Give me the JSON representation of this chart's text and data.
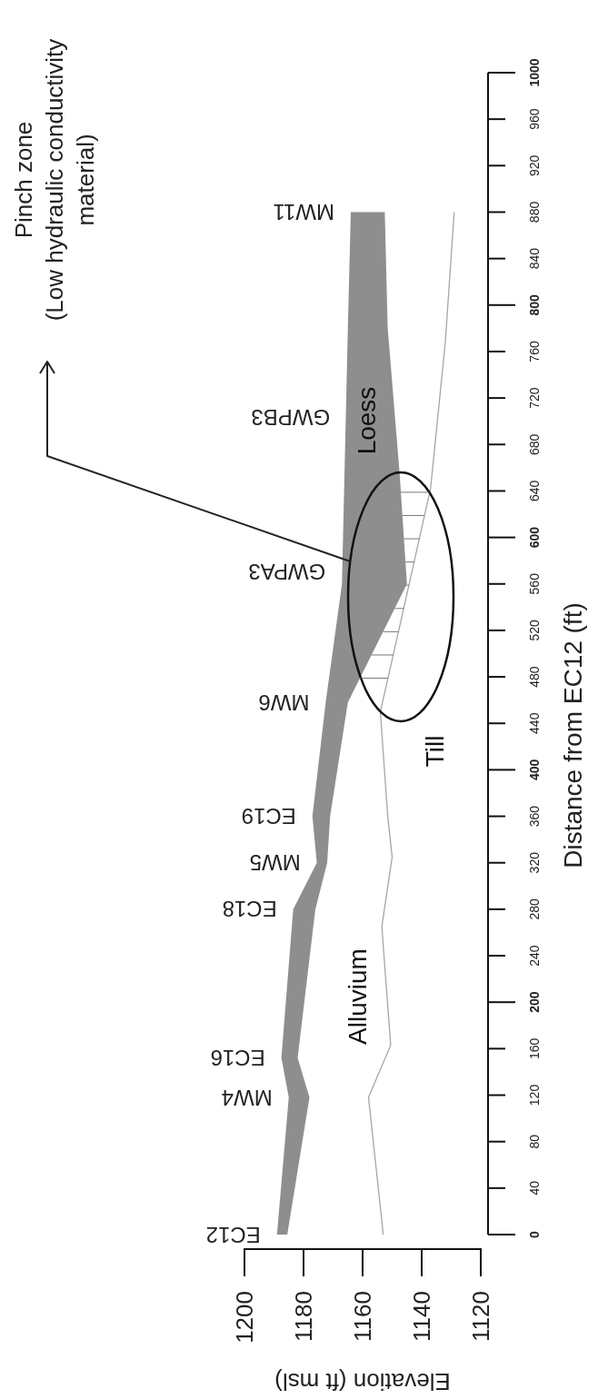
{
  "chart_data": {
    "type": "line",
    "xlabel": "Elevation (ft msl)",
    "ylabel": "Distance from EC12 (ft)",
    "xlim": [
      1200,
      1120
    ],
    "ylim": [
      0,
      1000
    ],
    "xticks": [
      1200,
      1180,
      1160,
      1140,
      1120
    ],
    "yticks": [
      0,
      40,
      80,
      120,
      160,
      200,
      240,
      280,
      320,
      360,
      400,
      440,
      480,
      520,
      560,
      600,
      640,
      680,
      720,
      760,
      800,
      840,
      880,
      920,
      960,
      1000
    ],
    "series": [
      {
        "type": "area",
        "color": "#8e8e8e",
        "x": [
          1189,
          1185,
          1187.5,
          1183.5,
          1175.5,
          1177,
          1172.5,
          1167,
          1165,
          1164,
          1152.5,
          1151.5,
          1147.5,
          1145,
          1165,
          1171,
          1172,
          1176,
          1182,
          1178,
          1185.5
        ],
        "values": [
          0,
          118,
          152,
          280,
          320,
          360,
          458,
          560,
          780,
          880,
          880,
          780,
          656,
          560,
          458,
          360,
          320,
          280,
          152,
          118,
          0
        ]
      },
      {
        "color": "#a6a6a6",
        "x": [
          1153,
          1158,
          1150.5,
          1153.5,
          1150,
          1151.5,
          1154,
          1147.5,
          1137,
          1132,
          1129
        ],
        "values": [
          0,
          118,
          163,
          265,
          325,
          360,
          450,
          523,
          642,
          768,
          880
        ]
      }
    ],
    "annotations": [
      {
        "text": "EC12",
        "x": 1189,
        "y": 0
      },
      {
        "text": "MW4",
        "x": 1185,
        "y": 118
      },
      {
        "text": "EC16",
        "x": 1187.5,
        "y": 152
      },
      {
        "text": "EC18",
        "x": 1183.5,
        "y": 280
      },
      {
        "text": "MW5",
        "x": 1175.5,
        "y": 320
      },
      {
        "text": "EC19",
        "x": 1177,
        "y": 360
      },
      {
        "text": "MW6",
        "x": 1172.5,
        "y": 458
      },
      {
        "text": "GWPA3",
        "x": 1167,
        "y": 570
      },
      {
        "text": "GWPB3",
        "x": 1165.5,
        "y": 703
      },
      {
        "text": "MW11",
        "x": 1164,
        "y": 880
      },
      "Loess",
      "Alluvium",
      "Till",
      "Pinch zone\n(Low hydraulic conductivity\nmaterial)"
    ]
  }
}
